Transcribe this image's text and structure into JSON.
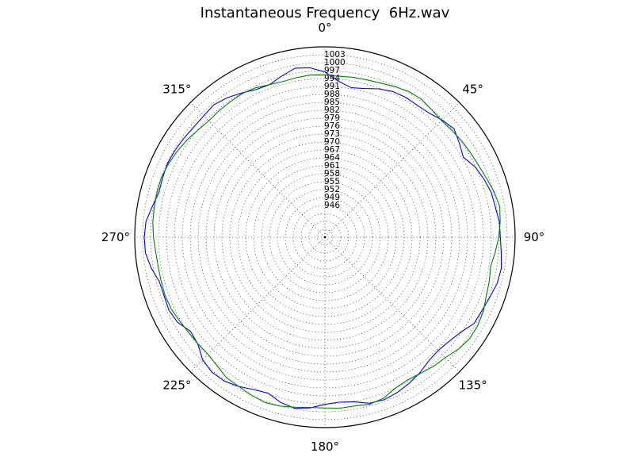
{
  "chart_data": {
    "type": "polar-line",
    "title": "Instantaneous Frequency  6Hz.wav",
    "theta_direction": "clockwise",
    "theta_zero": "top",
    "angular_ticks": [
      "0°",
      "45°",
      "90°",
      "135°",
      "180°",
      "225°",
      "270°",
      "315°"
    ],
    "angular_tick_degrees": [
      0,
      45,
      90,
      135,
      180,
      225,
      270,
      315
    ],
    "radial_ticks": [
      "946",
      "949",
      "952",
      "955",
      "958",
      "961",
      "964",
      "967",
      "970",
      "973",
      "976",
      "979",
      "982",
      "985",
      "988",
      "991",
      "994",
      "997",
      "1000",
      "1003"
    ],
    "radial_tick_values": [
      946,
      949,
      952,
      955,
      958,
      961,
      964,
      967,
      970,
      973,
      976,
      979,
      982,
      985,
      988,
      991,
      994,
      997,
      1000,
      1003
    ],
    "rlim": [
      934,
      1006
    ],
    "grid": true,
    "series": [
      {
        "color": "#0000ff",
        "theta_deg": [
          0,
          5,
          10,
          15,
          20,
          25,
          30,
          35,
          40,
          45,
          50,
          55,
          60,
          65,
          70,
          75,
          80,
          85,
          90,
          95,
          100,
          105,
          110,
          115,
          120,
          125,
          130,
          135,
          140,
          145,
          150,
          155,
          160,
          165,
          170,
          175,
          180,
          185,
          190,
          195,
          200,
          205,
          210,
          215,
          220,
          225,
          230,
          235,
          240,
          245,
          250,
          255,
          260,
          265,
          270,
          275,
          280,
          285,
          290,
          295,
          300,
          305,
          310,
          315,
          320,
          325,
          330,
          335,
          340,
          345,
          350,
          355
        ],
        "r": [
          996.5,
          993.2,
          991.4,
          992.2,
          993.7,
          994.8,
          995.1,
          994.9,
          995.3,
          996.7,
          997.8,
          996.1,
          994.5,
          996.8,
          998.1,
          999.2,
          999.5,
          1000.3,
          1000.4,
          1001.0,
          1001.8,
          1001.5,
          1000.4,
          999.6,
          999.2,
          996.7,
          995.3,
          994.6,
          995.1,
          996.6,
          997.8,
          998.8,
          999.4,
          999.0,
          997.2,
          996.6,
          997.2,
          998.8,
          999.7,
          998.7,
          996.8,
          997.6,
          999.2,
          1000.4,
          1000.6,
          999.5,
          996.8,
          996.1,
          998.4,
          999.2,
          998.8,
          998.9,
          1000.8,
          1002.2,
          1002.4,
          1002.0,
          1000.4,
          999.1,
          999.4,
          999.8,
          999.6,
          999.2,
          998.8,
          998.9,
          999.4,
          998.4,
          997.0,
          995.6,
          995.4,
          997.1,
          998.9,
          998.3
        ]
      },
      {
        "color": "#008000",
        "theta_deg": [
          0,
          5,
          10,
          15,
          20,
          25,
          30,
          35,
          40,
          45,
          50,
          55,
          60,
          65,
          70,
          75,
          80,
          85,
          90,
          95,
          100,
          105,
          110,
          115,
          120,
          125,
          130,
          135,
          140,
          145,
          150,
          155,
          160,
          165,
          170,
          175,
          180,
          185,
          190,
          195,
          200,
          205,
          210,
          215,
          220,
          225,
          230,
          235,
          240,
          245,
          250,
          255,
          260,
          265,
          270,
          275,
          280,
          285,
          290,
          295,
          300,
          305,
          310,
          315,
          320,
          325,
          330,
          335,
          340,
          345,
          350,
          355
        ],
        "r": [
          995.4,
          995.1,
          995.4,
          995.6,
          996.0,
          996.8,
          997.6,
          997.7,
          996.9,
          996.4,
          996.8,
          997.3,
          997.7,
          998.2,
          999.1,
          1000.3,
          1001.2,
          1000.6,
          999.8,
          998.7,
          997.7,
          998.4,
          999.0,
          1000.2,
          1000.8,
          1000.9,
          999.9,
          998.4,
          997.8,
          996.9,
          996.4,
          997.0,
          998.8,
          999.4,
          998.8,
          998.9,
          998.6,
          998.6,
          999.3,
          1000.1,
          1000.5,
          999.9,
          999.2,
          998.9,
          997.5,
          996.6,
          996.7,
          996.9,
          997.5,
          998.2,
          998.4,
          998.2,
          998.1,
          998.3,
          998.9,
          999.4,
          999.6,
          999.8,
          999.9,
          999.4,
          998.7,
          997.9,
          996.9,
          996.2,
          996.4,
          996.5,
          996.7,
          996.3,
          995.4,
          995.0,
          995.3,
          995.6
        ]
      }
    ]
  }
}
